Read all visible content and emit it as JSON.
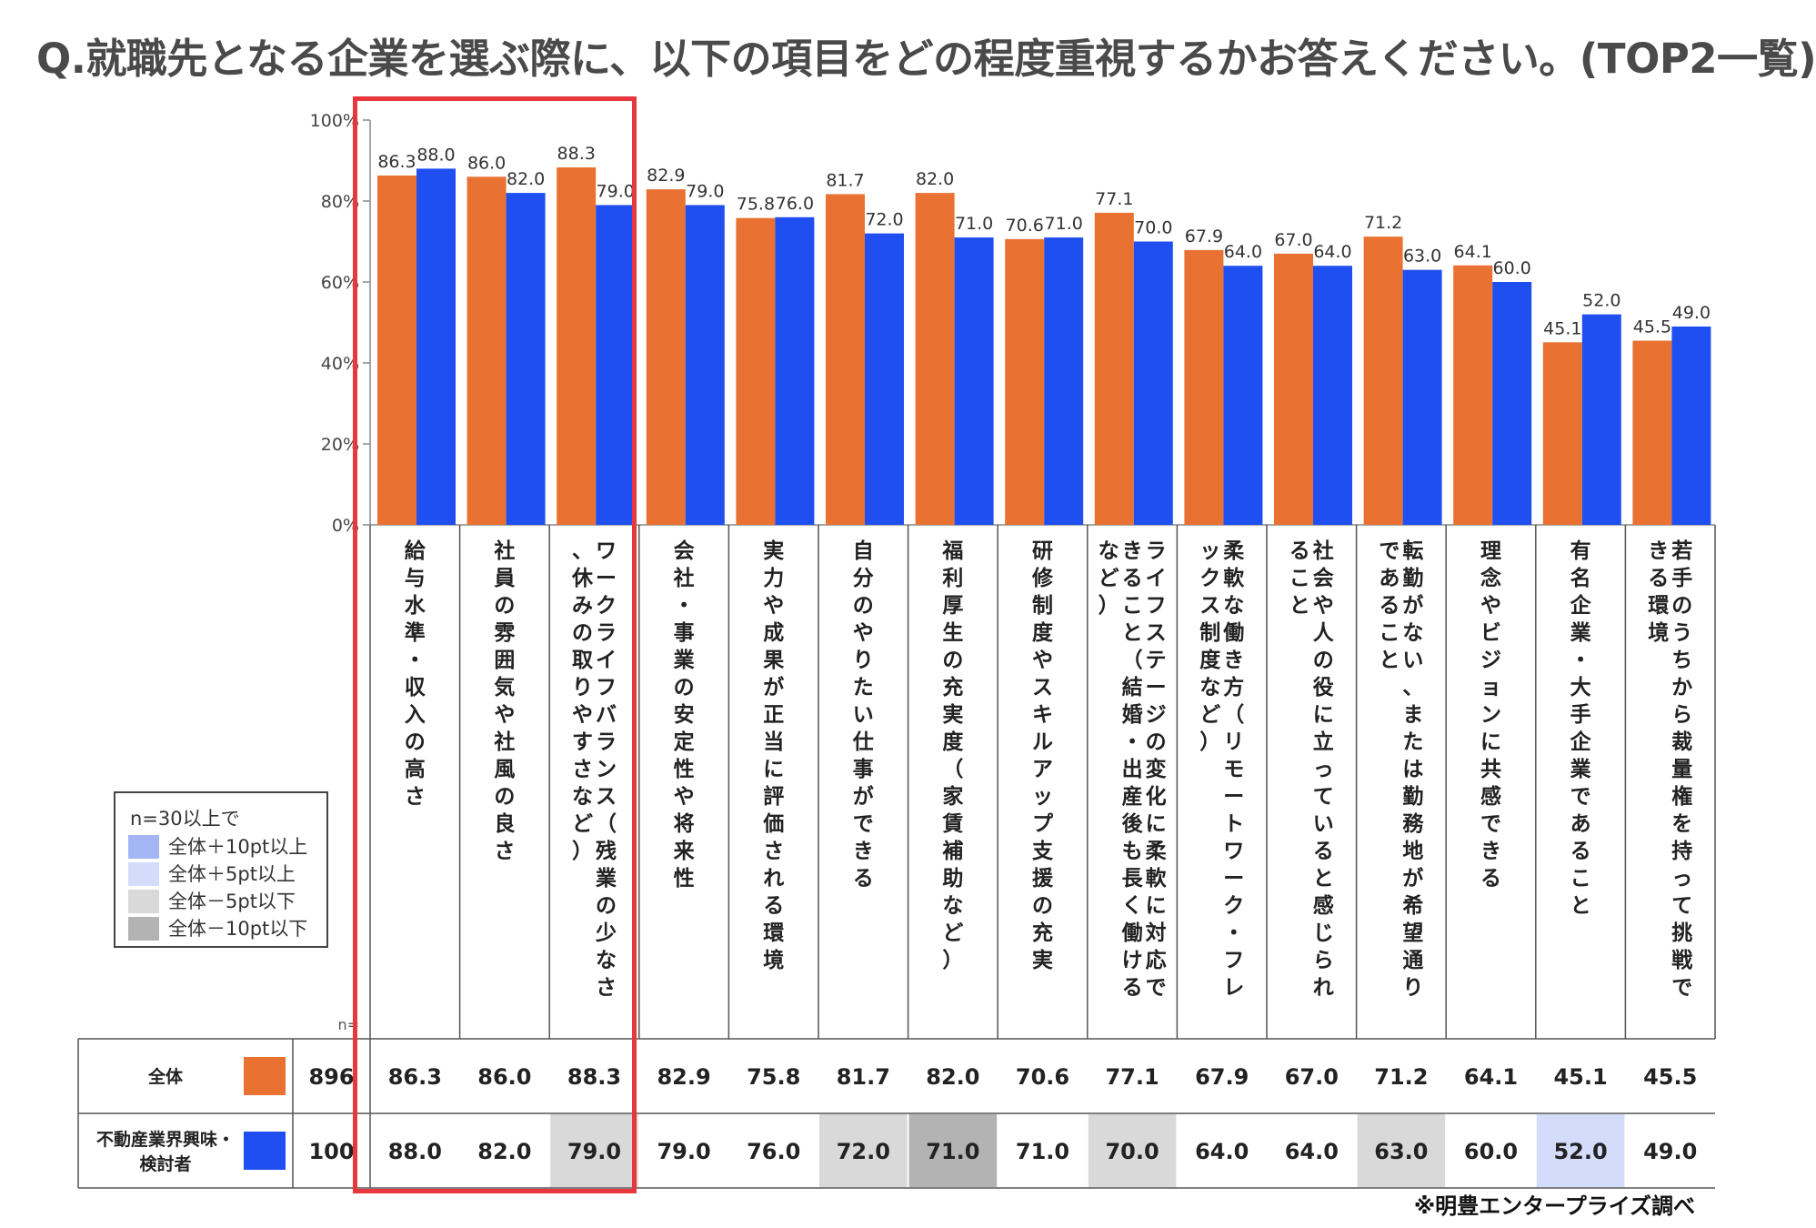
{
  "title": "Q.就職先となる企業を選ぶ際に、以下の項目をどの程度重視するかお答えください。(TOP2一覧)",
  "credit": "※明豊エンタープライズ調べ",
  "n_label": "n=",
  "legend": {
    "title": "n=30以上で",
    "items": [
      {
        "label": "全体＋10pt以上",
        "color": "#a4b5f5"
      },
      {
        "label": "全体＋5pt以上",
        "color": "#d3dcfb"
      },
      {
        "label": "全体－5pt以下",
        "color": "#d9d9d9"
      },
      {
        "label": "全体－10pt以下",
        "color": "#b3b3b3"
      }
    ]
  },
  "colors": {
    "series1": "#e97132",
    "series2": "#1f4ff0",
    "highlight": "#e8383d"
  },
  "chart_data": {
    "type": "bar",
    "ylim": [
      0,
      100
    ],
    "yticks": [
      "0%",
      "20%",
      "40%",
      "60%",
      "80%",
      "100%"
    ],
    "categories": [
      "給与水準・収入の高さ",
      "社員の雰囲気や社風の良さ",
      "ワークライフバランス（残業の少なさ、休みの取りやすさなど）",
      "会社・事業の安定性や将来性",
      "実力や成果が正当に評価される環境",
      "自分のやりたい仕事ができる",
      "福利厚生の充実度（家賃補助など）",
      "研修制度やスキルアップ支援の充実",
      "ライフステージの変化に柔軟に対応できること（結婚・出産後も長く働けるなど）",
      "柔軟な働き方（リモートワーク・フレックス制度など）",
      "社会や人の役に立っていると感じられること",
      "転勤がない、または勤務地が希望通りであること",
      "理念やビジョンに共感できる",
      "有名企業・大手企業であること",
      "若手のうちから裁量権を持って挑戦できる環境"
    ],
    "series": [
      {
        "name": "全体",
        "n": "896",
        "values": [
          86.3,
          86.0,
          88.3,
          82.9,
          75.8,
          81.7,
          82.0,
          70.6,
          77.1,
          67.9,
          67.0,
          71.2,
          64.1,
          45.1,
          45.5
        ],
        "labels": [
          "86.3",
          "86.0",
          "88.3",
          "82.9",
          "75.8",
          "81.7",
          "82.0",
          "70.6",
          "77.1",
          "67.9",
          "67.0",
          "71.2",
          "64.1",
          "45.1",
          "45.5"
        ]
      },
      {
        "name": "不動産業界興味・検討者",
        "n": "100",
        "values": [
          88.0,
          82.0,
          79.0,
          79.0,
          76.0,
          72.0,
          71.0,
          71.0,
          70.0,
          64.0,
          64.0,
          63.0,
          60.0,
          52.0,
          49.0
        ],
        "labels": [
          "88.0",
          "82.0",
          "79.0",
          "79.0",
          "76.0",
          "72.0",
          "71.0",
          "71.0",
          "70.0",
          "64.0",
          "64.0",
          "63.0",
          "60.0",
          "52.0",
          "49.0"
        ]
      }
    ]
  }
}
